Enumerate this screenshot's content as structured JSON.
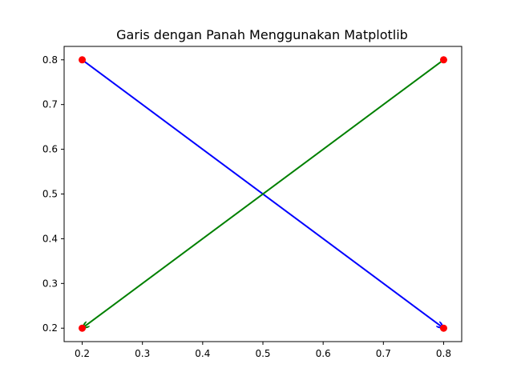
{
  "chart_data": {
    "type": "line",
    "title": "Garis dengan Panah Menggunakan Matplotlib",
    "xlabel": "",
    "ylabel": "",
    "xlim": [
      0.17,
      0.83
    ],
    "ylim": [
      0.17,
      0.83
    ],
    "xticks": [
      0.2,
      0.3,
      0.4,
      0.5,
      0.6,
      0.7,
      0.8
    ],
    "yticks": [
      0.2,
      0.3,
      0.4,
      0.5,
      0.6,
      0.7,
      0.8
    ],
    "xtick_labels": [
      "0.2",
      "0.3",
      "0.4",
      "0.5",
      "0.6",
      "0.7",
      "0.8"
    ],
    "ytick_labels": [
      "0.2",
      "0.3",
      "0.4",
      "0.5",
      "0.6",
      "0.7",
      "0.8"
    ],
    "grid": false,
    "points": {
      "x": [
        0.2,
        0.8,
        0.2,
        0.8
      ],
      "y": [
        0.2,
        0.8,
        0.8,
        0.2
      ],
      "color": "#ff0000"
    },
    "arrows": [
      {
        "from": [
          0.2,
          0.8
        ],
        "to": [
          0.8,
          0.2
        ],
        "color": "#0000ff"
      },
      {
        "from": [
          0.8,
          0.8
        ],
        "to": [
          0.2,
          0.2
        ],
        "color": "#008000"
      }
    ]
  }
}
